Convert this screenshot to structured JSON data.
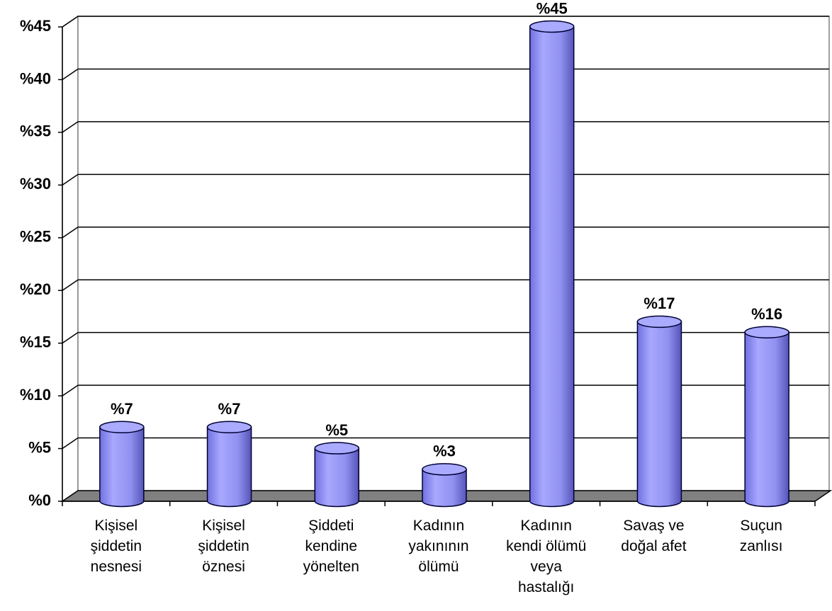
{
  "chart_data": {
    "type": "bar",
    "categories": [
      "Kişisel şiddetin nesnesi",
      "Kişisel şiddetin öznesi",
      "Şiddeti kendine yönelten",
      "Kadının yakınının ölümü",
      "Kadının kendi ölümü veya hastalığı",
      "Savaş ve doğal afet",
      "Suçun zanlısı"
    ],
    "values": [
      7,
      7,
      5,
      3,
      45,
      17,
      16
    ],
    "value_labels": [
      "%7",
      "%7",
      "%5",
      "%3",
      "%45",
      "%17",
      "%16"
    ],
    "color": "#9999ff",
    "ylim": [
      0,
      45
    ],
    "yticks": [
      {
        "value": 0,
        "label": "%0"
      },
      {
        "value": 5,
        "label": "%5"
      },
      {
        "value": 10,
        "label": "%10"
      },
      {
        "value": 15,
        "label": "%15"
      },
      {
        "value": 20,
        "label": "%20"
      },
      {
        "value": 25,
        "label": "%25"
      },
      {
        "value": 30,
        "label": "%30"
      },
      {
        "value": 35,
        "label": "%35"
      },
      {
        "value": 40,
        "label": "%40"
      },
      {
        "value": 45,
        "label": "%45"
      }
    ],
    "grid": true
  }
}
